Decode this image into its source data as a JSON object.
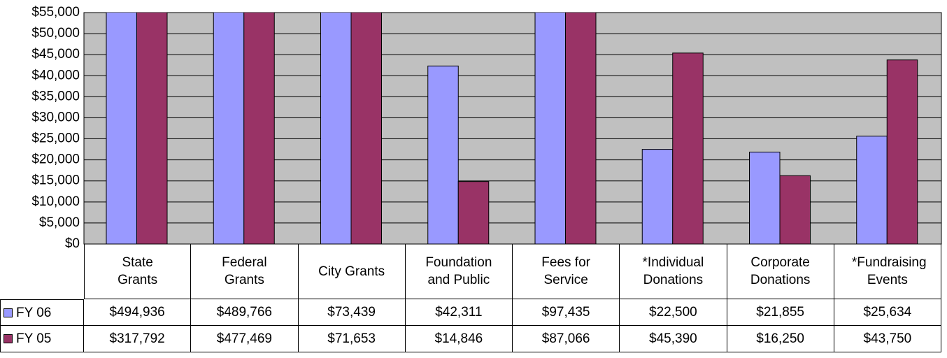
{
  "chart_data": {
    "type": "bar",
    "categories": [
      "State Grants",
      "Federal Grants",
      "City Grants",
      "Foundation and Public",
      "Fees for Service",
      "*Individual Donations",
      "Corporate Donations",
      "*Fundraising Events"
    ],
    "series": [
      {
        "name": "FY 06",
        "color": "#9999ff",
        "values": [
          494936,
          489766,
          73439,
          42311,
          97435,
          22500,
          21855,
          25634
        ],
        "value_labels": [
          "$494,936",
          "$489,766",
          "$73,439",
          "$42,311",
          "$97,435",
          "$22,500",
          "$21,855",
          "$25,634"
        ]
      },
      {
        "name": "FY 05",
        "color": "#993366",
        "values": [
          317792,
          477469,
          71653,
          14846,
          87066,
          45390,
          16250,
          43750
        ],
        "value_labels": [
          "$317,792",
          "$477,469",
          "$71,653",
          "$14,846",
          "$87,066",
          "$45,390",
          "$16,250",
          "$43,750"
        ]
      }
    ],
    "ylim": [
      0,
      55000
    ],
    "yticks": [
      {
        "value": 0,
        "label": "$0"
      },
      {
        "value": 5000,
        "label": "$5,000"
      },
      {
        "value": 10000,
        "label": "$10,000"
      },
      {
        "value": 15000,
        "label": "$15,000"
      },
      {
        "value": 20000,
        "label": "$20,000"
      },
      {
        "value": 25000,
        "label": "$25,000"
      },
      {
        "value": 30000,
        "label": "$30,000"
      },
      {
        "value": 35000,
        "label": "$35,000"
      },
      {
        "value": 40000,
        "label": "$40,000"
      },
      {
        "value": 45000,
        "label": "$45,000"
      },
      {
        "value": 50000,
        "label": "$50,000"
      },
      {
        "value": 55000,
        "label": "$55,000"
      }
    ],
    "grid": true,
    "plot_background": "#c0c0c0"
  }
}
